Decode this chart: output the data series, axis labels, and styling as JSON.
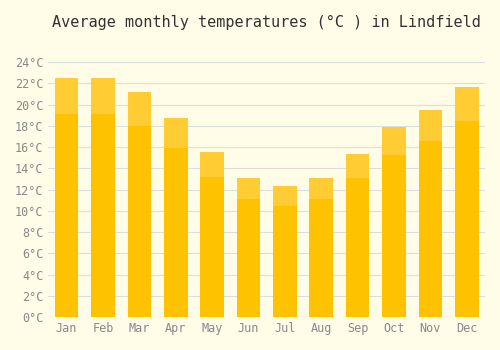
{
  "title": "Average monthly temperatures (°C ) in Lindfield",
  "months": [
    "Jan",
    "Feb",
    "Mar",
    "Apr",
    "May",
    "Jun",
    "Jul",
    "Aug",
    "Sep",
    "Oct",
    "Nov",
    "Dec"
  ],
  "values": [
    22.5,
    22.5,
    21.2,
    18.7,
    15.5,
    13.1,
    12.3,
    13.1,
    15.4,
    17.9,
    19.5,
    21.7
  ],
  "bar_color_top": "#FFC200",
  "bar_color_bottom": "#FFD966",
  "background_color": "#FFFDE7",
  "grid_color": "#DDDDDD",
  "title_fontsize": 11,
  "tick_fontsize": 8.5,
  "ylim": [
    0,
    26
  ],
  "ytick_step": 2
}
